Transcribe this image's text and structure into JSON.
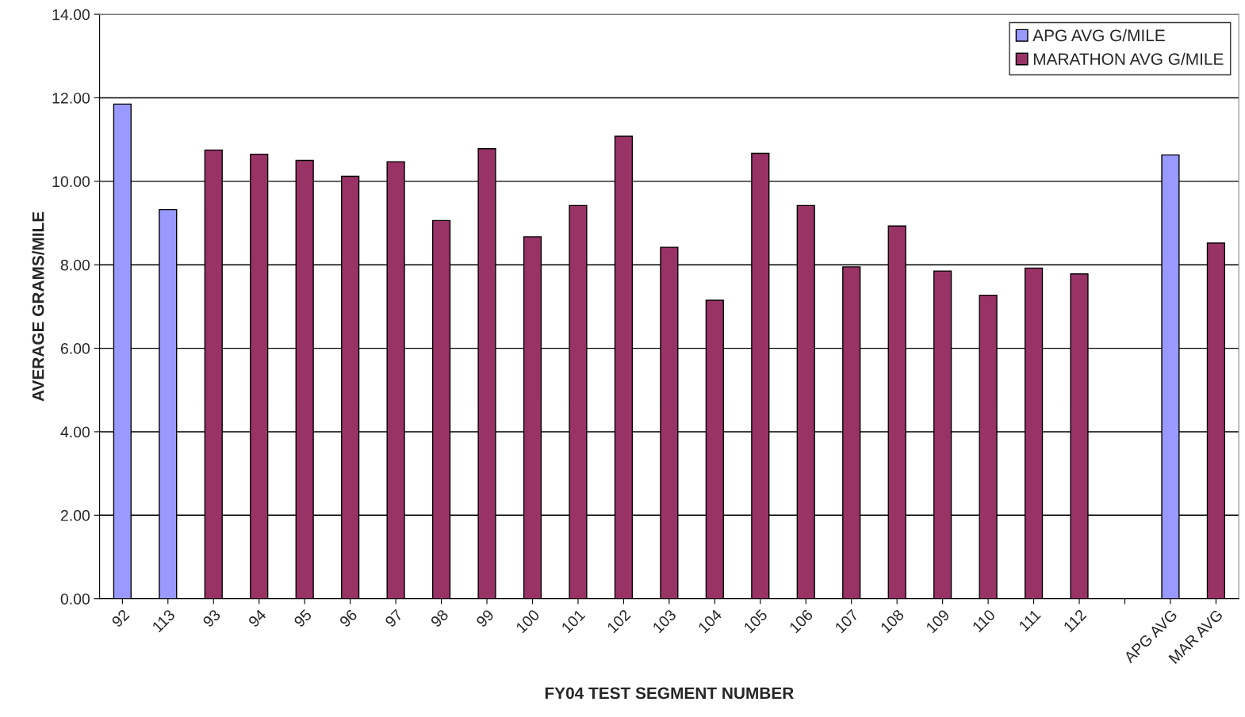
{
  "chart_data": {
    "type": "bar",
    "xlabel": "FY04 TEST SEGMENT NUMBER",
    "ylabel": "AVERAGE GRAMS/MILE",
    "categories": [
      "92",
      "113",
      "93",
      "94",
      "95",
      "96",
      "97",
      "98",
      "99",
      "100",
      "101",
      "102",
      "103",
      "104",
      "105",
      "106",
      "107",
      "108",
      "109",
      "110",
      "111",
      "112",
      null,
      "APG AVG",
      "MAR AVG"
    ],
    "series": [
      {
        "name": "APG AVG G/MILE",
        "color": "#9999ff",
        "values": [
          11.85,
          9.32,
          null,
          null,
          null,
          null,
          null,
          null,
          null,
          null,
          null,
          null,
          null,
          null,
          null,
          null,
          null,
          null,
          null,
          null,
          null,
          null,
          null,
          10.63,
          null
        ]
      },
      {
        "name": "MARATHON AVG G/MILE",
        "color": "#993366",
        "values": [
          null,
          null,
          10.75,
          10.65,
          10.5,
          10.12,
          10.47,
          9.06,
          10.78,
          8.67,
          9.42,
          11.08,
          8.42,
          7.15,
          10.67,
          9.42,
          7.95,
          8.93,
          7.85,
          7.27,
          7.92,
          7.78,
          null,
          null,
          8.52
        ]
      }
    ],
    "ylim": [
      0,
      14
    ],
    "yticks": [
      {
        "value": 0,
        "label": "0.00"
      },
      {
        "value": 2,
        "label": "2.00"
      },
      {
        "value": 4,
        "label": "4.00"
      },
      {
        "value": 6,
        "label": "6.00"
      },
      {
        "value": 8,
        "label": "8.00"
      },
      {
        "value": 10,
        "label": "10.00"
      },
      {
        "value": 12,
        "label": "12.00"
      },
      {
        "value": 14,
        "label": "14.00"
      }
    ],
    "grid": "y",
    "legend": "top right"
  }
}
